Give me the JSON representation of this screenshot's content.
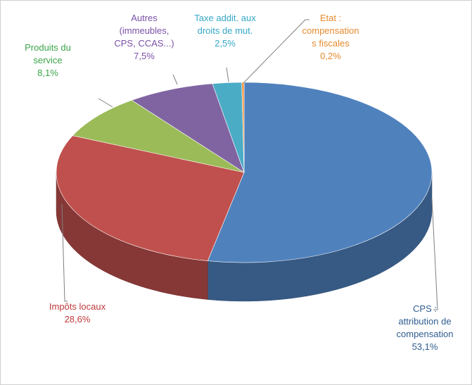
{
  "chart_data": {
    "type": "pie3d",
    "categories": [
      "CPS :\nattribution de\ncompensation",
      "Impôts locaux",
      "Produits du\nservice",
      "Autres\n(immeubles,\nCPS, CCAS...)",
      "Taxe addit. aux\ndroits de mut.",
      "Etat :\ncompensation\ns fiscales"
    ],
    "values": [
      53.1,
      28.6,
      8.1,
      7.5,
      2.5,
      0.2
    ],
    "value_labels": [
      "53,1%",
      "28,6%",
      "8,1%",
      "7,5%",
      "2,5%",
      "0,2%"
    ],
    "colors": [
      "#4f81bd",
      "#c0504d",
      "#9bbb59",
      "#8064a2",
      "#4bacc6",
      "#f79646"
    ],
    "label_colors": [
      "#2f5d91",
      "#c0393b",
      "#3aa54a",
      "#7a50a8",
      "#35a7c8",
      "#e58a2e"
    ]
  }
}
